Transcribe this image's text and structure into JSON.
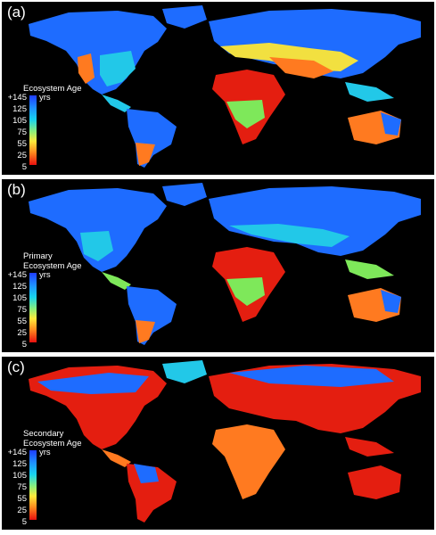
{
  "panels": [
    {
      "label": "(a)",
      "title_lines": [
        "Ecosystem Age"
      ]
    },
    {
      "label": "(b)",
      "title_lines": [
        "Primary",
        "Ecosystem Age"
      ]
    },
    {
      "label": "(c)",
      "title_lines": [
        "Secondary",
        "Ecosystem Age"
      ]
    }
  ],
  "legend": {
    "ticks": [
      "+145",
      "125",
      "105",
      "75",
      "55",
      "25",
      "5"
    ],
    "units": "yrs",
    "colors": [
      "#1f3cff",
      "#1e90ff",
      "#18d4ee",
      "#8cf07a",
      "#ffe93a",
      "#ff8a1e",
      "#e81010"
    ]
  },
  "colors": {
    "background": "#000000",
    "land_blue": "#1e6cff",
    "land_cyan": "#22c8e8",
    "land_green": "#7ee85a",
    "land_yellow": "#f2e040",
    "land_orange": "#ff7a20",
    "land_red": "#e41e10"
  }
}
